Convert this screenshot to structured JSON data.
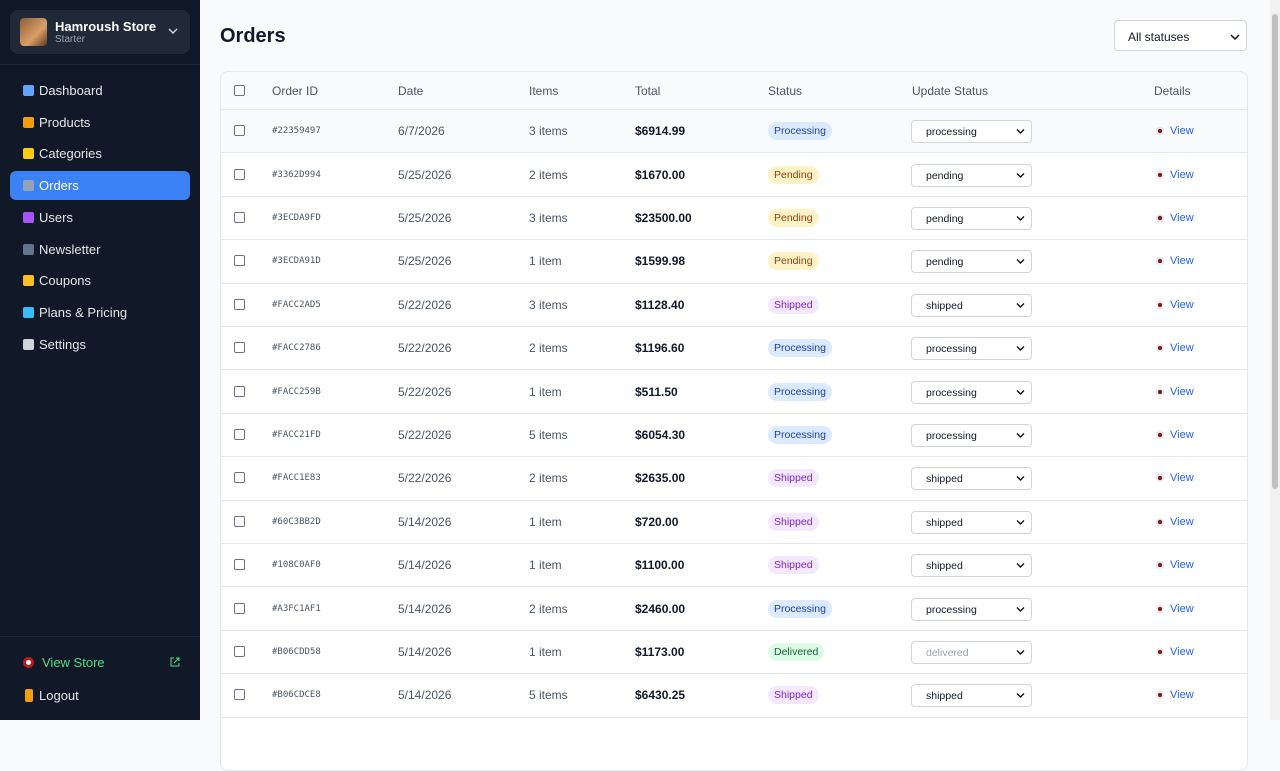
{
  "sidebar": {
    "store_name": "Hamroush Store",
    "plan": "Starter",
    "nav": [
      "Dashboard",
      "Products",
      "Categories",
      "Orders",
      "Users",
      "Newsletter",
      "Coupons",
      "Plans & Pricing",
      "Settings"
    ],
    "view_store": "View Store",
    "logout": "Logout"
  },
  "header": {
    "title": "Orders",
    "filter": "All statuses"
  },
  "table": {
    "columns": [
      "Order ID",
      "Date",
      "Items",
      "Total",
      "Status",
      "Update Status",
      "Details"
    ],
    "rows": [
      {
        "id": "#22359497",
        "date": "6/7/2026",
        "items": "3 items",
        "total": "$6914.99",
        "status": "Processing",
        "update": "processing",
        "details": "View"
      },
      {
        "id": "#3362D994",
        "date": "5/25/2026",
        "items": "2 items",
        "total": "$1670.00",
        "status": "Pending",
        "update": "pending",
        "details": "View"
      },
      {
        "id": "#3ECDA9FD",
        "date": "5/25/2026",
        "items": "3 items",
        "total": "$23500.00",
        "status": "Pending",
        "update": "pending",
        "details": "View"
      },
      {
        "id": "#3ECDA91D",
        "date": "5/25/2026",
        "items": "1 item",
        "total": "$1599.98",
        "status": "Pending",
        "update": "pending",
        "details": "View"
      },
      {
        "id": "#FACC2AD5",
        "date": "5/22/2026",
        "items": "3 items",
        "total": "$1128.40",
        "status": "Shipped",
        "update": "shipped",
        "details": "View"
      },
      {
        "id": "#FACC2786",
        "date": "5/22/2026",
        "items": "2 items",
        "total": "$1196.60",
        "status": "Processing",
        "update": "processing",
        "details": "View"
      },
      {
        "id": "#FACC259B",
        "date": "5/22/2026",
        "items": "1 item",
        "total": "$511.50",
        "status": "Processing",
        "update": "processing",
        "details": "View"
      },
      {
        "id": "#FACC21FD",
        "date": "5/22/2026",
        "items": "5 items",
        "total": "$6054.30",
        "status": "Processing",
        "update": "processing",
        "details": "View"
      },
      {
        "id": "#FACC1E83",
        "date": "5/22/2026",
        "items": "2 items",
        "total": "$2635.00",
        "status": "Shipped",
        "update": "shipped",
        "details": "View"
      },
      {
        "id": "#60C3BB2D",
        "date": "5/14/2026",
        "items": "1 item",
        "total": "$720.00",
        "status": "Shipped",
        "update": "shipped",
        "details": "View"
      },
      {
        "id": "#108C0AF0",
        "date": "5/14/2026",
        "items": "1 item",
        "total": "$1100.00",
        "status": "Shipped",
        "update": "shipped",
        "details": "View"
      },
      {
        "id": "#A3FC1AF1",
        "date": "5/14/2026",
        "items": "2 items",
        "total": "$2460.00",
        "status": "Processing",
        "update": "processing",
        "details": "View"
      },
      {
        "id": "#B06CDD58",
        "date": "5/14/2026",
        "items": "1 item",
        "total": "$1173.00",
        "status": "Delivered",
        "update": "delivered",
        "details": "View"
      },
      {
        "id": "#B06CDCE8",
        "date": "5/14/2026",
        "items": "5 items",
        "total": "$6430.25",
        "status": "Shipped",
        "update": "shipped",
        "details": "View"
      }
    ]
  }
}
